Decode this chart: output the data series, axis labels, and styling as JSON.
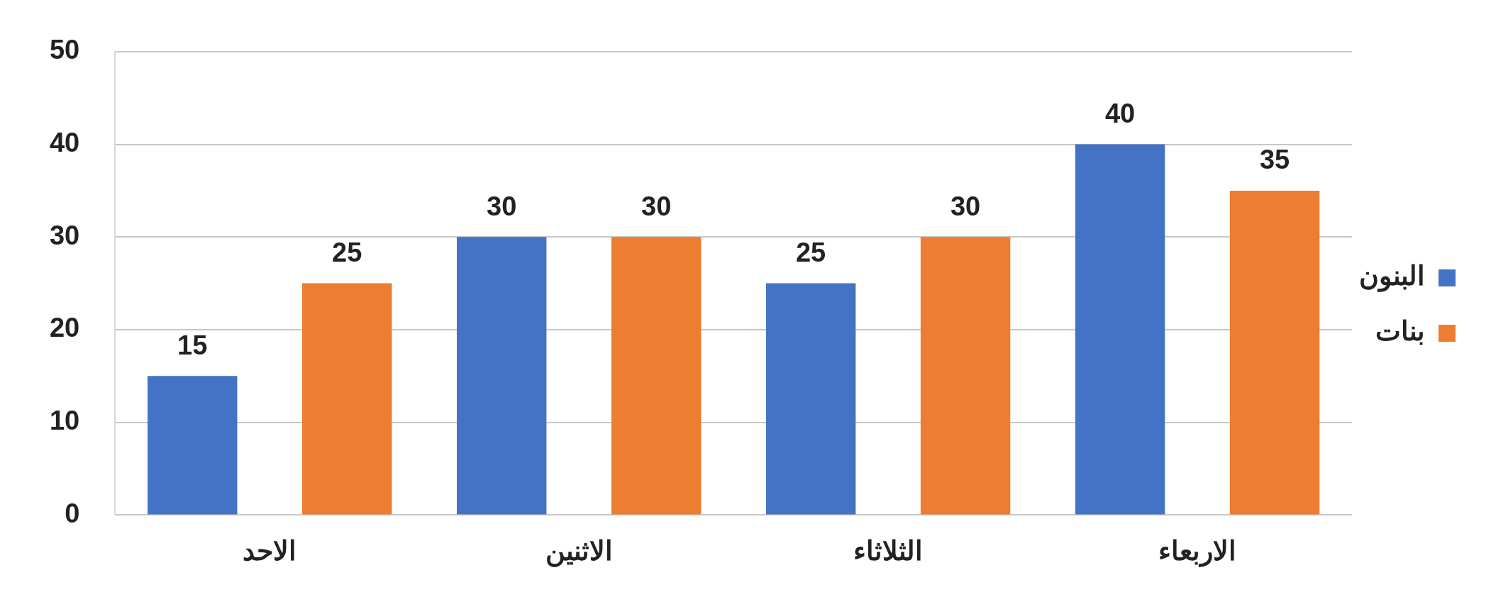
{
  "chart_data": {
    "type": "bar",
    "categories": [
      "الاحد",
      "الاثنين",
      "الثلاثاء",
      "الاربعاء"
    ],
    "series": [
      {
        "name": "البنون",
        "color": "#4472c4",
        "values": [
          15,
          30,
          25,
          40
        ]
      },
      {
        "name": "بنات",
        "color": "#ed7d31",
        "values": [
          25,
          30,
          30,
          35
        ]
      }
    ],
    "ylim": [
      0,
      50
    ],
    "yticks": [
      0,
      10,
      20,
      30,
      40,
      50
    ],
    "grid": "y",
    "legend": "right",
    "data_labels": true
  }
}
